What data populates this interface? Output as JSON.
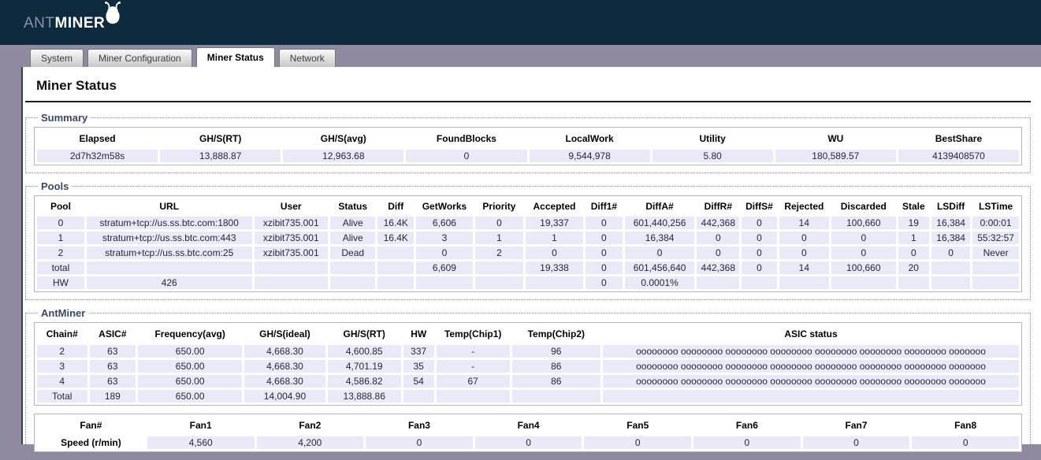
{
  "colors": {
    "header_bg": "#0e2a3e",
    "tab_strip_bg": "#9189a0",
    "table_row_bg": "#e9e9f8",
    "legend_text": "#3a4668"
  },
  "header": {
    "brand_prefix": "ANT",
    "brand_suffix": "MINER"
  },
  "tabs": [
    {
      "label": "System",
      "active": false
    },
    {
      "label": "Miner Configuration",
      "active": false
    },
    {
      "label": "Miner Status",
      "active": true
    },
    {
      "label": "Network",
      "active": false
    }
  ],
  "page_title": "Miner Status",
  "summary": {
    "legend": "Summary",
    "columns": [
      "Elapsed",
      "GH/S(RT)",
      "GH/S(avg)",
      "FoundBlocks",
      "LocalWork",
      "Utility",
      "WU",
      "BestShare"
    ],
    "rows": [
      [
        "2d7h32m58s",
        "13,888.87",
        "12,963.68",
        "0",
        "9,544,978",
        "5.80",
        "180,589.57",
        "4139408570"
      ]
    ]
  },
  "pools": {
    "legend": "Pools",
    "columns": [
      "Pool",
      "URL",
      "User",
      "Status",
      "Diff",
      "GetWorks",
      "Priority",
      "Accepted",
      "Diff1#",
      "DiffA#",
      "DiffR#",
      "DiffS#",
      "Rejected",
      "Discarded",
      "Stale",
      "LSDiff",
      "LSTime"
    ],
    "rows": [
      [
        "0",
        "stratum+tcp://us.ss.btc.com:1800",
        "xzibit735.001",
        "Alive",
        "16.4K",
        "6,606",
        "0",
        "19,337",
        "0",
        "601,440,256",
        "442,368",
        "0",
        "14",
        "100,660",
        "19",
        "16,384",
        "0:00:01"
      ],
      [
        "1",
        "stratum+tcp://us.ss.btc.com:443",
        "xzibit735.001",
        "Alive",
        "16.4K",
        "3",
        "1",
        "1",
        "0",
        "16,384",
        "0",
        "0",
        "0",
        "0",
        "1",
        "16,384",
        "55:32:57"
      ],
      [
        "2",
        "stratum+tcp://us.ss.btc.com:25",
        "xzibit735.001",
        "Dead",
        "",
        "0",
        "2",
        "0",
        "0",
        "0",
        "0",
        "0",
        "0",
        "0",
        "0",
        "0",
        "Never"
      ],
      [
        "total",
        "",
        "",
        "",
        "",
        "6,609",
        "",
        "19,338",
        "0",
        "601,456,640",
        "442,368",
        "0",
        "14",
        "100,660",
        "20",
        "",
        ""
      ],
      [
        "HW",
        "426",
        "",
        "",
        "",
        "",
        "",
        "",
        "0",
        "0.0001%",
        "",
        "",
        "",
        "",
        "",
        "",
        ""
      ]
    ]
  },
  "antminer": {
    "legend": "AntMiner",
    "chain_columns": [
      "Chain#",
      "ASIC#",
      "Frequency(avg)",
      "GH/S(ideal)",
      "GH/S(RT)",
      "HW",
      "Temp(Chip1)",
      "Temp(Chip2)",
      "ASIC status"
    ],
    "chain_rows": [
      [
        "2",
        "63",
        "650.00",
        "4,668.30",
        "4,600.85",
        "337",
        "-",
        "96",
        "oooooooo oooooooo oooooooo oooooooo oooooooo oooooooo oooooooo ooooooo"
      ],
      [
        "3",
        "63",
        "650.00",
        "4,668.30",
        "4,701.19",
        "35",
        "-",
        "86",
        "oooooooo oooooooo oooooooo oooooooo oooooooo oooooooo oooooooo ooooooo"
      ],
      [
        "4",
        "63",
        "650.00",
        "4,668.30",
        "4,586.82",
        "54",
        "67",
        "86",
        "oooooooo oooooooo oooooooo oooooooo oooooooo oooooooo oooooooo ooooooo"
      ],
      [
        "Total",
        "189",
        "650.00",
        "14,004.90",
        "13,888.86",
        "",
        "",
        "",
        ""
      ]
    ],
    "fan_columns": [
      "Fan#",
      "Fan1",
      "Fan2",
      "Fan3",
      "Fan4",
      "Fan5",
      "Fan6",
      "Fan7",
      "Fan8"
    ],
    "fan_rows": [
      [
        "Speed (r/min)",
        "4,560",
        "4,200",
        "0",
        "0",
        "0",
        "0",
        "0",
        "0"
      ]
    ]
  }
}
